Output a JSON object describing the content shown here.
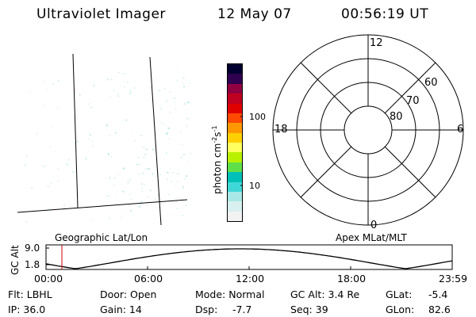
{
  "header": {
    "instrument": "Ultraviolet Imager",
    "date": "12 May 07",
    "time": "00:56:19 UT"
  },
  "geo_panel": {
    "label": "Geographic Lat/Lon"
  },
  "colorbar": {
    "label_main": "photon cm",
    "label_exp1": "-2",
    "label_s": "s",
    "label_exp2": "-1",
    "tick_100": "100",
    "tick_10": "10",
    "colors": [
      "#f2f2f2",
      "#d8f0ef",
      "#a8e8e6",
      "#40d8d6",
      "#00c0b8",
      "#60e048",
      "#b8f000",
      "#ffff60",
      "#ffd000",
      "#ff9800",
      "#ff4800",
      "#e00000",
      "#c00020",
      "#900040",
      "#300050",
      "#000030"
    ]
  },
  "polar_panel": {
    "label": "Apex MLat/MLT",
    "mlt_top": "12",
    "mlt_left": "18",
    "mlt_right": "6",
    "mlt_bottom": "0",
    "lat_60": "60",
    "lat_70": "70",
    "lat_80": "80"
  },
  "orbit_plot": {
    "ylabel": "GC Alt",
    "y_top": "9.0",
    "y_bottom": "1.8",
    "x_ticks": [
      "00:00",
      "06:00",
      "12:00",
      "18:00",
      "23:59"
    ],
    "marker_time": "00:56:19"
  },
  "info": {
    "flt": "Flt: LBHL",
    "ip": "IP: 36.0",
    "door": "Door: Open",
    "gain": "Gain: 14",
    "mode": "Mode: Normal",
    "dsp_label": "Dsp:",
    "dsp_value": "-7.7",
    "gcalt": "GC Alt: 3.4 Re",
    "seq": "Seq: 39",
    "glat_label": "GLat:",
    "glat_value": "-5.4",
    "glon_label": "GLon:",
    "glon_value": "82.6"
  }
}
